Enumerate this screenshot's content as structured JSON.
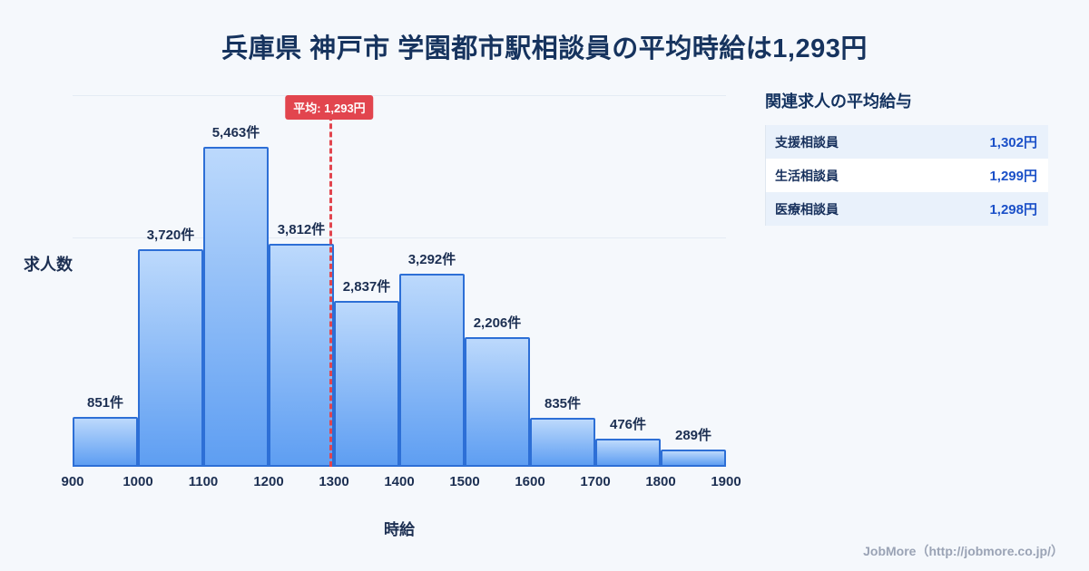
{
  "page": {
    "title": "兵庫県 神戸市 学園都市駅相談員の平均時給は1,293円",
    "footer": "JobMore（http://jobmore.co.jp/）"
  },
  "chart_data": {
    "type": "bar",
    "title": "兵庫県 神戸市 学園都市駅相談員の平均時給は1,293円",
    "xlabel": "時給",
    "ylabel": "求人数",
    "x_ticks": [
      "900",
      "1000",
      "1100",
      "1200",
      "1300",
      "1400",
      "1500",
      "1600",
      "1700",
      "1800",
      "1900"
    ],
    "categories": [
      "900-1000",
      "1000-1100",
      "1100-1200",
      "1200-1300",
      "1300-1400",
      "1400-1500",
      "1500-1600",
      "1600-1700",
      "1700-1800",
      "1800-1900"
    ],
    "values": [
      851,
      3720,
      5463,
      3812,
      2837,
      3292,
      2206,
      835,
      476,
      289
    ],
    "bar_labels": [
      "851件",
      "3,720件",
      "5,463件",
      "3,812件",
      "2,837件",
      "3,292件",
      "2,206件",
      "835件",
      "476件",
      "289件"
    ],
    "average": 1293,
    "average_label": "平均: 1,293円",
    "xlim": [
      900,
      1900
    ],
    "ylim": [
      0,
      6000
    ],
    "legend": "none",
    "grid": "faint-horizontal",
    "colors": {
      "bar_fill_top": "#bcd9fc",
      "bar_fill_bottom": "#5e9ef2",
      "bar_border": "#2d6fd6",
      "average_line": "#e2454e",
      "title_text": "#16335e",
      "background": "#f5f8fc"
    }
  },
  "side_panel": {
    "title": "関連求人の平均給与",
    "rows": [
      {
        "label": "支援相談員",
        "value": "1,302円"
      },
      {
        "label": "生活相談員",
        "value": "1,299円"
      },
      {
        "label": "医療相談員",
        "value": "1,298円"
      }
    ]
  }
}
